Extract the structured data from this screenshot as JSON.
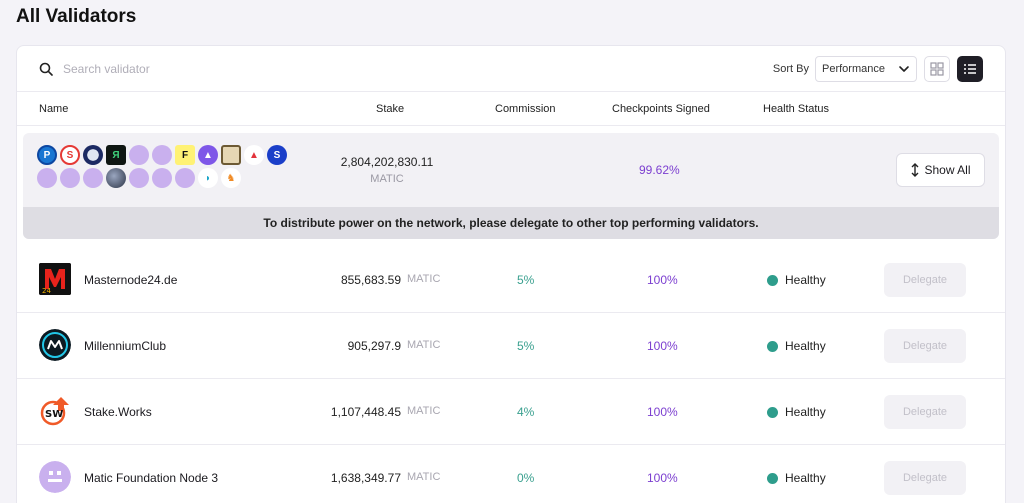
{
  "page": {
    "title": "All Validators"
  },
  "toolbar": {
    "search_placeholder": "Search validator",
    "sort_label": "Sort By",
    "sort_value": "Performance"
  },
  "columns": {
    "name": "Name",
    "stake": "Stake",
    "commission": "Commission",
    "checkpoints": "Checkpoints Signed",
    "health": "Health Status"
  },
  "group": {
    "stake": "2,804,202,830.11",
    "unit": "MATIC",
    "checkpoints": "99.62%",
    "show_all_label": "Show All",
    "notice": "To distribute power on the network, please delegate to other top performing validators.",
    "logo_letters": {
      "f": "F",
      "s": "S"
    }
  },
  "validators": [
    {
      "name": "Masternode24.de",
      "stake": "855,683.59",
      "unit": "MATIC",
      "commission": "5%",
      "checkpoints": "100%",
      "health": "Healthy",
      "action": "Delegate"
    },
    {
      "name": "MillenniumClub",
      "stake": "905,297.9",
      "unit": "MATIC",
      "commission": "5%",
      "checkpoints": "100%",
      "health": "Healthy",
      "action": "Delegate"
    },
    {
      "name": "Stake.Works",
      "stake": "1,107,448.45",
      "unit": "MATIC",
      "commission": "4%",
      "checkpoints": "100%",
      "health": "Healthy",
      "action": "Delegate"
    },
    {
      "name": "Matic Foundation Node 3",
      "stake": "1,638,349.77",
      "unit": "MATIC",
      "commission": "0%",
      "checkpoints": "100%",
      "health": "Healthy",
      "action": "Delegate"
    }
  ],
  "colors": {
    "accent_purple": "#7c3fd0",
    "commission_teal": "#3aa08f",
    "healthy_green": "#2e9d8c",
    "placeholder_avatar": "#c9b0ee"
  },
  "icons": {
    "search": "search-icon",
    "sort_chevron": "chevron-down-icon",
    "grid_view": "grid-view-icon",
    "list_view": "list-view-icon",
    "show_all": "expand-vertical-icon"
  }
}
